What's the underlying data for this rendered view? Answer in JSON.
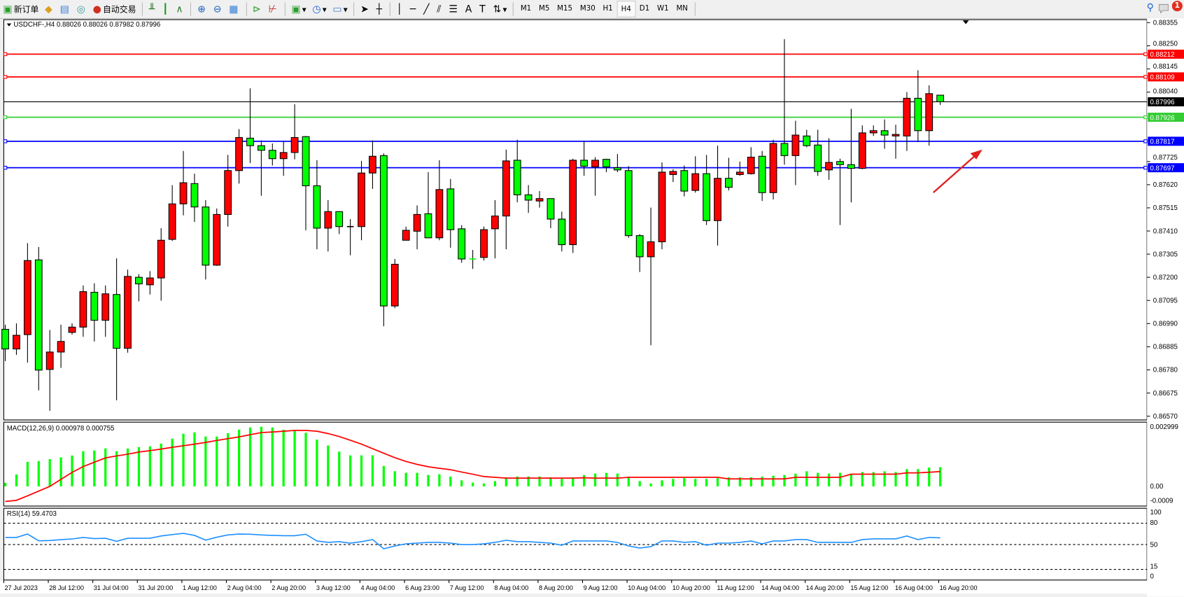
{
  "toolbar": {
    "new_order_label": "新订单",
    "auto_trade_label": "自动交易",
    "timeframes": [
      "M1",
      "M5",
      "M15",
      "M30",
      "H1",
      "H4",
      "D1",
      "W1",
      "MN"
    ],
    "active_timeframe": "H4",
    "notification_count": "1",
    "icons": [
      "new-order-icon",
      "market-watch-icon",
      "data-window-icon",
      "signals-icon",
      "auto-trade-icon",
      "bar-chart-icon",
      "candle-chart-icon",
      "line-chart-icon",
      "zoom-in-icon",
      "zoom-out-icon",
      "tile-windows-icon",
      "chart-shift-icon",
      "autoscroll-icon",
      "indicators-icon",
      "periods-icon",
      "templates-icon",
      "cursor-icon",
      "crosshair-icon",
      "vertical-line-icon",
      "horizontal-line-icon",
      "trendline-icon",
      "equidistant-channel-icon",
      "fibonacci-icon",
      "text-icon",
      "text-label-icon",
      "arrows-icon",
      "search-icon",
      "notification-icon"
    ]
  },
  "chart": {
    "header": "USDCHF-,H4  0.88026 0.88026 0.87982 0.87996",
    "colors": {
      "up": "#ff0000",
      "down": "#00ff00",
      "bg": "#ffffff",
      "grid": "#000000"
    },
    "price_ticks": [
      "0.88355",
      "0.88250",
      "0.88145",
      "0.88040",
      "0.87725",
      "0.87620",
      "0.87515",
      "0.87410",
      "0.87305",
      "0.87200",
      "0.87095",
      "0.86990",
      "0.86885",
      "0.86780",
      "0.86675",
      "0.86570"
    ],
    "hlines": [
      {
        "price": "0.88212",
        "color": "#ff0000"
      },
      {
        "price": "0.88109",
        "color": "#ff0000"
      },
      {
        "price": "0.87996",
        "color": "#000000",
        "bid": true
      },
      {
        "price": "0.87926",
        "color": "#33cc33"
      },
      {
        "price": "0.87817",
        "color": "#0000ff"
      },
      {
        "price": "0.87697",
        "color": "#0000ff"
      }
    ],
    "time_labels": [
      "27 Jul 2023",
      "28 Jul 12:00",
      "31 Jul 04:00",
      "31 Jul 20:00",
      "1 Aug 12:00",
      "2 Aug 04:00",
      "2 Aug 20:00",
      "3 Aug 12:00",
      "4 Aug 04:00",
      "6 Aug 23:00",
      "7 Aug 12:00",
      "8 Aug 04:00",
      "8 Aug 20:00",
      "9 Aug 12:00",
      "10 Aug 04:00",
      "10 Aug 20:00",
      "11 Aug 12:00",
      "14 Aug 04:00",
      "14 Aug 20:00",
      "15 Aug 12:00",
      "16 Aug 04:00",
      "16 Aug 20:00"
    ]
  },
  "chart_data": {
    "type": "candlestick",
    "symbol": "USDCHF-",
    "timeframe": "H4",
    "ylim": [
      0.8657,
      0.88355
    ],
    "ohlc": [
      [
        0.86964,
        0.86985,
        0.8682,
        0.86875
      ],
      [
        0.86875,
        0.86991,
        0.86848,
        0.86937
      ],
      [
        0.8694,
        0.87355,
        0.86813,
        0.87276
      ],
      [
        0.87279,
        0.87337,
        0.86687,
        0.86779
      ],
      [
        0.86782,
        0.86961,
        0.86594,
        0.86861
      ],
      [
        0.86861,
        0.86985,
        0.86789,
        0.86909
      ],
      [
        0.8695,
        0.86991,
        0.8694,
        0.86974
      ],
      [
        0.86974,
        0.87163,
        0.8693,
        0.87135
      ],
      [
        0.87132,
        0.87173,
        0.86909,
        0.87005
      ],
      [
        0.87005,
        0.87163,
        0.8693,
        0.87125
      ],
      [
        0.87122,
        0.87286,
        0.86642,
        0.86878
      ],
      [
        0.86878,
        0.87235,
        0.86858,
        0.87204
      ],
      [
        0.872,
        0.87214,
        0.87091,
        0.8717
      ],
      [
        0.87166,
        0.87228,
        0.87122,
        0.87197
      ],
      [
        0.87197,
        0.87423,
        0.87094,
        0.87368
      ],
      [
        0.87372,
        0.87618,
        0.87365,
        0.87533
      ],
      [
        0.87533,
        0.87773,
        0.87481,
        0.87629
      ],
      [
        0.87625,
        0.8767,
        0.87451,
        0.87519
      ],
      [
        0.87519,
        0.8755,
        0.8719,
        0.87255
      ],
      [
        0.87255,
        0.87512,
        0.87252,
        0.87485
      ],
      [
        0.87485,
        0.87755,
        0.8743,
        0.87684
      ],
      [
        0.87684,
        0.87872,
        0.87625,
        0.87834
      ],
      [
        0.87831,
        0.88057,
        0.87718,
        0.87797
      ],
      [
        0.87797,
        0.87821,
        0.8757,
        0.87776
      ],
      [
        0.87776,
        0.87807,
        0.87707,
        0.87738
      ],
      [
        0.87738,
        0.87817,
        0.8766,
        0.87766
      ],
      [
        0.87766,
        0.87985,
        0.87735,
        0.87834
      ],
      [
        0.87838,
        0.87841,
        0.87413,
        0.87615
      ],
      [
        0.87615,
        0.87731,
        0.87327,
        0.87423
      ],
      [
        0.87423,
        0.8755,
        0.87317,
        0.87498
      ],
      [
        0.87498,
        0.87498,
        0.87396,
        0.8743
      ],
      [
        0.8743,
        0.87464,
        0.873,
        0.87428
      ],
      [
        0.8743,
        0.87728,
        0.87368,
        0.87673
      ],
      [
        0.87673,
        0.87821,
        0.87601,
        0.87749
      ],
      [
        0.87752,
        0.87762,
        0.86978,
        0.8707
      ],
      [
        0.8707,
        0.87283,
        0.8706,
        0.87259
      ],
      [
        0.87368,
        0.8743,
        0.87368,
        0.87413
      ],
      [
        0.87409,
        0.87526,
        0.87327,
        0.87485
      ],
      [
        0.87488,
        0.87677,
        0.87379,
        0.87379
      ],
      [
        0.87379,
        0.87731,
        0.87368,
        0.87598
      ],
      [
        0.87601,
        0.87646,
        0.87334,
        0.87416
      ],
      [
        0.8742,
        0.87437,
        0.87266,
        0.87283
      ],
      [
        0.87283,
        0.87324,
        0.87238,
        0.87281
      ],
      [
        0.8729,
        0.8743,
        0.87276,
        0.87416
      ],
      [
        0.8742,
        0.8755,
        0.87286,
        0.87478
      ],
      [
        0.87478,
        0.87779,
        0.87327,
        0.87728
      ],
      [
        0.87731,
        0.87824,
        0.8754,
        0.87574
      ],
      [
        0.87574,
        0.87618,
        0.87492,
        0.8755
      ],
      [
        0.87546,
        0.87591,
        0.87516,
        0.87557
      ],
      [
        0.87557,
        0.87557,
        0.87423,
        0.87464
      ],
      [
        0.87464,
        0.87498,
        0.87317,
        0.87348
      ],
      [
        0.87348,
        0.87738,
        0.8731,
        0.87731
      ],
      [
        0.87731,
        0.87817,
        0.8766,
        0.87704
      ],
      [
        0.87701,
        0.87745,
        0.8757,
        0.87731
      ],
      [
        0.87735,
        0.87738,
        0.87677,
        0.87701
      ],
      [
        0.87697,
        0.87759,
        0.87677,
        0.87687
      ],
      [
        0.87684,
        0.87704,
        0.87379,
        0.87389
      ],
      [
        0.87389,
        0.87396,
        0.87224,
        0.87293
      ],
      [
        0.87293,
        0.87516,
        0.86892,
        0.87361
      ],
      [
        0.87361,
        0.87721,
        0.87327,
        0.87677
      ],
      [
        0.87666,
        0.8769,
        0.87632,
        0.8768
      ],
      [
        0.87684,
        0.87707,
        0.87567,
        0.87591
      ],
      [
        0.87594,
        0.87749,
        0.87584,
        0.8767
      ],
      [
        0.8767,
        0.87755,
        0.87437,
        0.87457
      ],
      [
        0.87457,
        0.87797,
        0.87344,
        0.87649
      ],
      [
        0.87649,
        0.87742,
        0.87594,
        0.87608
      ],
      [
        0.87666,
        0.87725,
        0.8766,
        0.87677
      ],
      [
        0.8767,
        0.8779,
        0.87666,
        0.87745
      ],
      [
        0.87749,
        0.87773,
        0.87546,
        0.87584
      ],
      [
        0.87584,
        0.87824,
        0.87553,
        0.87807
      ],
      [
        0.87807,
        0.8828,
        0.87711,
        0.87752
      ],
      [
        0.87752,
        0.8791,
        0.87618,
        0.87845
      ],
      [
        0.87841,
        0.87869,
        0.8779,
        0.87797
      ],
      [
        0.878,
        0.87869,
        0.8766,
        0.8768
      ],
      [
        0.87687,
        0.87831,
        0.87642,
        0.87721
      ],
      [
        0.87725,
        0.87738,
        0.87437,
        0.87711
      ],
      [
        0.87711,
        0.87964,
        0.8754,
        0.87694
      ],
      [
        0.87694,
        0.87889,
        0.8769,
        0.87855
      ],
      [
        0.87855,
        0.87889,
        0.87841,
        0.87865
      ],
      [
        0.87865,
        0.87916,
        0.87783,
        0.87845
      ],
      [
        0.87841,
        0.87892,
        0.87738,
        0.87848
      ],
      [
        0.87841,
        0.8804,
        0.87773,
        0.88012
      ],
      [
        0.88012,
        0.88139,
        0.87814,
        0.87865
      ],
      [
        0.87865,
        0.88071,
        0.87797,
        0.88033
      ],
      [
        0.88026,
        0.88026,
        0.87982,
        0.87996
      ]
    ],
    "macd": {
      "label": "MACD(12,26,9) 0.000978 0.000755",
      "ylim": [
        -0.0009,
        0.002999
      ],
      "ticks": [
        "0.002999",
        "0.00",
        "-0.0009"
      ],
      "main": [
        0.00018,
        0.00061,
        0.00125,
        0.00129,
        0.00139,
        0.00148,
        0.00157,
        0.00179,
        0.00183,
        0.00193,
        0.00179,
        0.00193,
        0.002,
        0.00204,
        0.00218,
        0.00243,
        0.00268,
        0.00275,
        0.00254,
        0.00254,
        0.00271,
        0.00289,
        0.003,
        0.00304,
        0.003,
        0.00288,
        0.00285,
        0.00273,
        0.00238,
        0.00208,
        0.00177,
        0.00158,
        0.00158,
        0.00158,
        0.00104,
        0.00077,
        0.00069,
        0.00069,
        0.00058,
        0.00062,
        0.0005,
        0.00031,
        0.00019,
        0.00015,
        0.00027,
        0.00046,
        0.0005,
        0.0005,
        0.0005,
        0.00046,
        0.00038,
        0.00046,
        0.00058,
        0.00065,
        0.00069,
        0.00065,
        0.0005,
        0.00027,
        0.00015,
        0.00031,
        0.00038,
        0.00042,
        0.00038,
        0.00038,
        0.00042,
        0.00046,
        0.00046,
        0.00046,
        0.0005,
        0.00054,
        0.00058,
        0.00065,
        0.00077,
        0.00069,
        0.00065,
        0.00069,
        0.00065,
        0.00073,
        0.00073,
        0.00077,
        0.00073,
        0.00088,
        0.00088,
        0.00096,
        0.000978
      ],
      "signal": [
        -0.00077,
        -0.00071,
        -0.00048,
        -0.00024,
        0,
        0.00036,
        0.00071,
        0.00101,
        0.00123,
        0.00145,
        0.00155,
        0.00164,
        0.00175,
        0.00182,
        0.0019,
        0.00199,
        0.00207,
        0.00215,
        0.00224,
        0.00234,
        0.00243,
        0.00252,
        0.00263,
        0.00274,
        0.00277,
        0.00281,
        0.00285,
        0.00285,
        0.00281,
        0.00269,
        0.00254,
        0.00235,
        0.00215,
        0.00192,
        0.00169,
        0.00146,
        0.00127,
        0.00112,
        0.001,
        0.00092,
        0.00085,
        0.00073,
        0.00062,
        0.0005,
        0.00046,
        0.00042,
        0.00042,
        0.00042,
        0.00042,
        0.00042,
        0.00042,
        0.00042,
        0.00044,
        0.00042,
        0.00042,
        0.00042,
        0.00046,
        0.00046,
        0.00046,
        0.00046,
        0.00046,
        0.00046,
        0.00046,
        0.00046,
        0.00046,
        0.00038,
        0.00038,
        0.00038,
        0.00038,
        0.00038,
        0.00038,
        0.00046,
        0.00046,
        0.00046,
        0.00046,
        0.00046,
        0.00062,
        0.00062,
        0.00062,
        0.00062,
        0.00062,
        0.00069,
        0.00069,
        0.00072,
        0.000755
      ],
      "colors": {
        "main": "#00ff00",
        "signal": "#ff0000"
      }
    },
    "rsi": {
      "label": "RSI(14) 59.4703",
      "ylim": [
        0,
        100
      ],
      "ticks": [
        "100",
        "80",
        "50",
        "15",
        "0"
      ],
      "levels": [
        80,
        50,
        15
      ],
      "values": [
        60,
        60,
        64.8,
        55.3,
        55.6,
        56.9,
        57.8,
        60,
        58.4,
        58.8,
        54.6,
        58.8,
        58.8,
        58.8,
        62,
        64,
        65.7,
        62.9,
        56.2,
        60.3,
        63.5,
        64.8,
        64.5,
        63.5,
        62.9,
        62.4,
        62.4,
        64.5,
        55,
        53,
        54,
        52,
        54,
        57,
        44,
        48,
        51,
        52,
        53,
        53,
        52,
        50,
        50,
        51,
        53,
        56,
        54,
        54,
        53,
        52,
        49,
        55,
        55,
        55,
        55,
        53,
        48,
        45,
        47,
        55,
        55,
        53,
        54,
        49,
        52,
        52,
        53,
        55,
        51,
        55,
        55,
        57,
        57,
        53,
        53,
        53,
        53,
        57,
        58,
        58,
        58,
        62,
        57,
        60,
        59.4703
      ],
      "color": "#1e90ff"
    }
  }
}
